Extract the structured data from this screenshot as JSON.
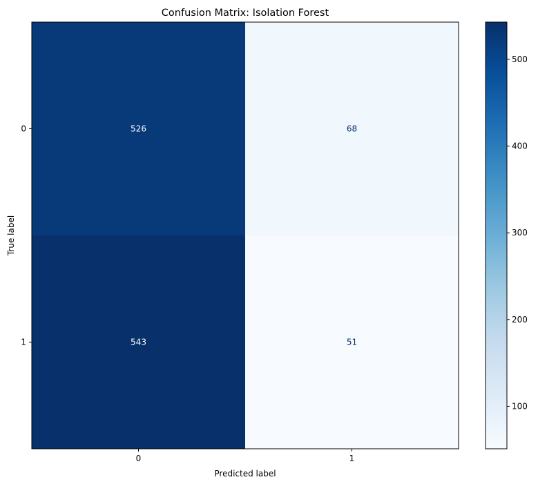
{
  "chart_data": {
    "type": "heatmap",
    "title": "Confusion Matrix: Isolation Forest",
    "xlabel": "Predicted label",
    "ylabel": "True label",
    "x_categories": [
      "0",
      "1"
    ],
    "y_categories": [
      "0",
      "1"
    ],
    "matrix": [
      [
        526,
        68
      ],
      [
        543,
        51
      ]
    ],
    "colormap": "Blues",
    "colorbar": {
      "min": 51,
      "max": 543,
      "ticks": [
        100,
        200,
        300,
        400,
        500
      ]
    },
    "grid": false
  }
}
